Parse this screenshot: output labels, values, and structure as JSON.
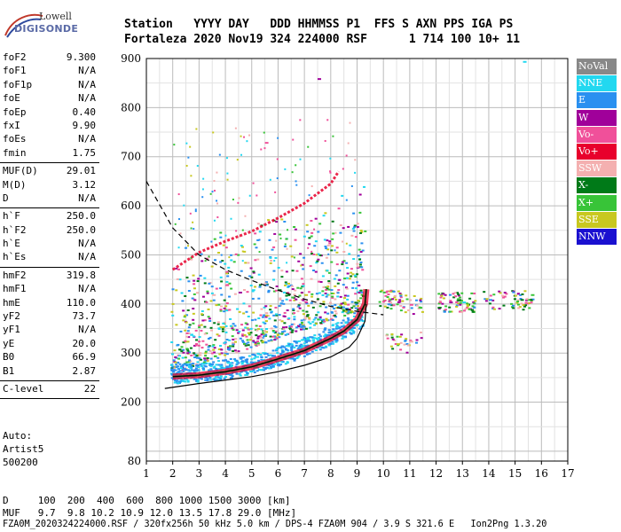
{
  "logo": {
    "line1": "Lowell",
    "line2": "DIGISONDE"
  },
  "header": {
    "row1": "Station   YYYY DAY   DDD HHMMSS P1  FFS S AXN PPS IGA PS",
    "row2": "Fortaleza 2020 Nov19 324 224000 RSF      1 714 100 10+ 11"
  },
  "params": {
    "group1": [
      {
        "k": "foF2",
        "v": "9.300"
      },
      {
        "k": "foF1",
        "v": "N/A"
      },
      {
        "k": "foF1p",
        "v": "N/A"
      },
      {
        "k": "foE",
        "v": "N/A"
      },
      {
        "k": "foEp",
        "v": "0.40"
      },
      {
        "k": "fxI",
        "v": "9.90"
      },
      {
        "k": "foEs",
        "v": "N/A"
      },
      {
        "k": "fmin",
        "v": "1.75"
      }
    ],
    "group2": [
      {
        "k": "MUF(D)",
        "v": "29.01"
      },
      {
        "k": "M(D)",
        "v": "3.12"
      },
      {
        "k": "D",
        "v": "N/A"
      }
    ],
    "group3": [
      {
        "k": "h`F",
        "v": "250.0"
      },
      {
        "k": "h`F2",
        "v": "250.0"
      },
      {
        "k": "h`E",
        "v": "N/A"
      },
      {
        "k": "h`Es",
        "v": "N/A"
      }
    ],
    "group4": [
      {
        "k": "hmF2",
        "v": "319.8"
      },
      {
        "k": "hmF1",
        "v": "N/A"
      },
      {
        "k": "hmE",
        "v": "110.0"
      },
      {
        "k": "yF2",
        "v": "73.7"
      },
      {
        "k": "yF1",
        "v": "N/A"
      },
      {
        "k": "yE",
        "v": "20.0"
      },
      {
        "k": "B0",
        "v": "66.9"
      },
      {
        "k": "B1",
        "v": "2.87"
      }
    ],
    "group5": [
      {
        "k": "C-level",
        "v": "22"
      }
    ]
  },
  "auto": {
    "line1": "Auto:",
    "line2": "Artist5",
    "line3": "500200"
  },
  "legend": [
    {
      "label": "NoVal",
      "color": "#888888"
    },
    {
      "label": "NNE",
      "color": "#22d8f0"
    },
    {
      "label": "E",
      "color": "#2a90f0"
    },
    {
      "label": "W",
      "color": "#a0009a"
    },
    {
      "label": "Vo-",
      "color": "#f0509a"
    },
    {
      "label": "Vo+",
      "color": "#e8002c"
    },
    {
      "label": "SSW",
      "color": "#f4b0b0"
    },
    {
      "label": "X-",
      "color": "#007a18"
    },
    {
      "label": "X+",
      "color": "#38c438"
    },
    {
      "label": "SSE",
      "color": "#c8c820"
    },
    {
      "label": "NNW",
      "color": "#1a10d0"
    }
  ],
  "bottom": {
    "row1": "D     100  200  400  600  800 1000 1500 3000 [km]",
    "row2": "MUF   9.7  9.8 10.2 10.9 12.0 13.5 17.8 29.0 [MHz]",
    "row3": "FZA0M_2020324224000.RSF / 320fx256h 50 kHz 5.0 km / DPS-4 FZA0M 904 / 3.9 S 321.6 E   Ion2Png 1.3.20"
  },
  "chart_data": {
    "type": "scatter",
    "title": "",
    "xlabel": "",
    "ylabel": "",
    "xlim": [
      1,
      17
    ],
    "ylim": [
      80,
      900
    ],
    "xticks": [
      "1",
      "2",
      "3",
      "4",
      "5",
      "6",
      "7",
      "8",
      "9",
      "10",
      "11",
      "12",
      "13",
      "14",
      "15",
      "16",
      "17"
    ],
    "yticks": [
      {
        "v": 80,
        "label": "80"
      },
      {
        "v": 200,
        "label": "200"
      },
      {
        "v": 300,
        "label": "300"
      },
      {
        "v": 400,
        "label": "400"
      },
      {
        "v": 500,
        "label": "500"
      },
      {
        "v": 600,
        "label": "600"
      },
      {
        "v": 700,
        "label": "700"
      },
      {
        "v": 800,
        "label": "800"
      },
      {
        "v": 900,
        "label": "900"
      }
    ],
    "grid": true,
    "legend_position": "right",
    "trace_o": [
      [
        2.0,
        252
      ],
      [
        3.0,
        255
      ],
      [
        4.0,
        262
      ],
      [
        5.0,
        272
      ],
      [
        6.0,
        288
      ],
      [
        7.0,
        305
      ],
      [
        8.0,
        330
      ],
      [
        8.5,
        345
      ],
      [
        9.0,
        368
      ],
      [
        9.3,
        400
      ],
      [
        9.35,
        430
      ]
    ],
    "trace_profile": [
      [
        1.7,
        228
      ],
      [
        3.0,
        238
      ],
      [
        4.0,
        245
      ],
      [
        5.0,
        252
      ],
      [
        6.0,
        262
      ],
      [
        7.0,
        275
      ],
      [
        8.0,
        292
      ],
      [
        8.7,
        312
      ],
      [
        9.0,
        330
      ],
      [
        9.3,
        365
      ],
      [
        9.35,
        400
      ]
    ],
    "muf_curve": [
      [
        1.0,
        650
      ],
      [
        2.0,
        555
      ],
      [
        3.0,
        500
      ],
      [
        4.0,
        470
      ],
      [
        5.0,
        448
      ],
      [
        6.0,
        428
      ],
      [
        7.0,
        410
      ],
      [
        8.0,
        395
      ],
      [
        9.0,
        385
      ],
      [
        10.0,
        378
      ]
    ],
    "second_hop": [
      [
        2.0,
        470
      ],
      [
        3.0,
        505
      ],
      [
        4.0,
        528
      ],
      [
        5.0,
        548
      ],
      [
        6.0,
        575
      ],
      [
        7.0,
        605
      ],
      [
        8.0,
        645
      ],
      [
        8.3,
        670
      ]
    ],
    "echo_points": [
      {
        "x": 3.5,
        "y": 420
      },
      {
        "x": 4.0,
        "y": 440
      },
      {
        "x": 4.5,
        "y": 425
      },
      {
        "x": 5.0,
        "y": 430
      },
      {
        "x": 5.5,
        "y": 440
      },
      {
        "x": 6.0,
        "y": 430
      },
      {
        "x": 6.5,
        "y": 415
      },
      {
        "x": 7.0,
        "y": 420
      },
      {
        "x": 10.2,
        "y": 405
      },
      {
        "x": 11.0,
        "y": 400
      },
      {
        "x": 12.5,
        "y": 405
      },
      {
        "x": 13.0,
        "y": 405
      },
      {
        "x": 14.0,
        "y": 410
      },
      {
        "x": 15.2,
        "y": 410
      },
      {
        "x": 15.6,
        "y": 420
      },
      {
        "x": 10.5,
        "y": 320
      },
      {
        "x": 11.0,
        "y": 325
      },
      {
        "x": 5.5,
        "y": 730
      },
      {
        "x": 7.5,
        "y": 860
      },
      {
        "x": 15.3,
        "y": 895
      }
    ]
  }
}
